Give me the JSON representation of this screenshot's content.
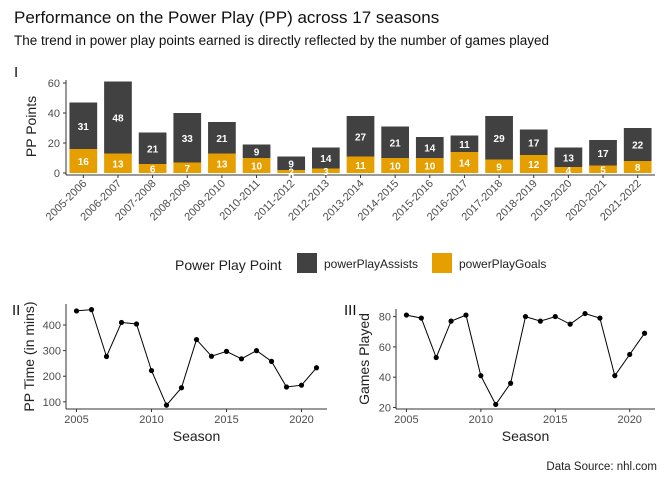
{
  "header": {
    "title": "Performance on the Power Play (PP) across 17 seasons",
    "subtitle": "The trend in power play points earned is directly reflected by the number of games played"
  },
  "caption": "Data Source: nhl.com",
  "colors": {
    "assists": "#414141",
    "goals": "#E69F00",
    "line": "#000000"
  },
  "chart_data": [
    {
      "panel": "I",
      "type": "bar",
      "stacked": true,
      "ylabel": "PP Points",
      "ylim": [
        0,
        62
      ],
      "yticks": [
        0,
        20,
        40,
        60
      ],
      "categories": [
        "2005-2006",
        "2006-2007",
        "2007-2008",
        "2008-2009",
        "2009-2010",
        "2010-2011",
        "2011-2012",
        "2012-2013",
        "2013-2014",
        "2014-2015",
        "2015-2016",
        "2016-2017",
        "2017-2018",
        "2018-2019",
        "2019-2020",
        "2020-2021",
        "2021-2022"
      ],
      "series": [
        {
          "name": "powerPlayGoals",
          "values": [
            16,
            13,
            6,
            7,
            13,
            10,
            2,
            3,
            11,
            10,
            10,
            14,
            9,
            12,
            4,
            5,
            8
          ]
        },
        {
          "name": "powerPlayAssists",
          "values": [
            31,
            48,
            21,
            33,
            21,
            9,
            9,
            14,
            27,
            21,
            14,
            11,
            29,
            17,
            13,
            17,
            22
          ]
        }
      ],
      "legend": {
        "title": "Power Play Point",
        "position": "bottom",
        "entries": [
          "powerPlayAssists",
          "powerPlayGoals"
        ]
      }
    },
    {
      "panel": "II",
      "type": "line",
      "xlabel": "Season",
      "ylabel": "PP Time (in mins)",
      "xlim": [
        2004.3,
        2021.7
      ],
      "ylim": [
        72,
        482
      ],
      "xticks": [
        2005,
        2010,
        2015,
        2020
      ],
      "yticks": [
        100,
        200,
        300,
        400
      ],
      "x": [
        2005,
        2006,
        2007,
        2008,
        2009,
        2010,
        2011,
        2012,
        2013,
        2014,
        2015,
        2016,
        2017,
        2018,
        2019,
        2020,
        2021
      ],
      "y": [
        455,
        460,
        277,
        410,
        404,
        222,
        87,
        155,
        343,
        278,
        297,
        268,
        300,
        258,
        158,
        165,
        233
      ]
    },
    {
      "panel": "III",
      "type": "line",
      "xlabel": "Season",
      "ylabel": "Games Played",
      "xlim": [
        2004.3,
        2021.7
      ],
      "ylim": [
        19,
        85
      ],
      "xticks": [
        2005,
        2010,
        2015,
        2020
      ],
      "yticks": [
        20,
        40,
        60,
        80
      ],
      "x": [
        2005,
        2006,
        2007,
        2008,
        2009,
        2010,
        2011,
        2012,
        2013,
        2014,
        2015,
        2016,
        2017,
        2018,
        2019,
        2020,
        2021
      ],
      "y": [
        81,
        79,
        53,
        77,
        81,
        41,
        22,
        36,
        80,
        77,
        80,
        75,
        82,
        79,
        41,
        55,
        69
      ]
    }
  ]
}
